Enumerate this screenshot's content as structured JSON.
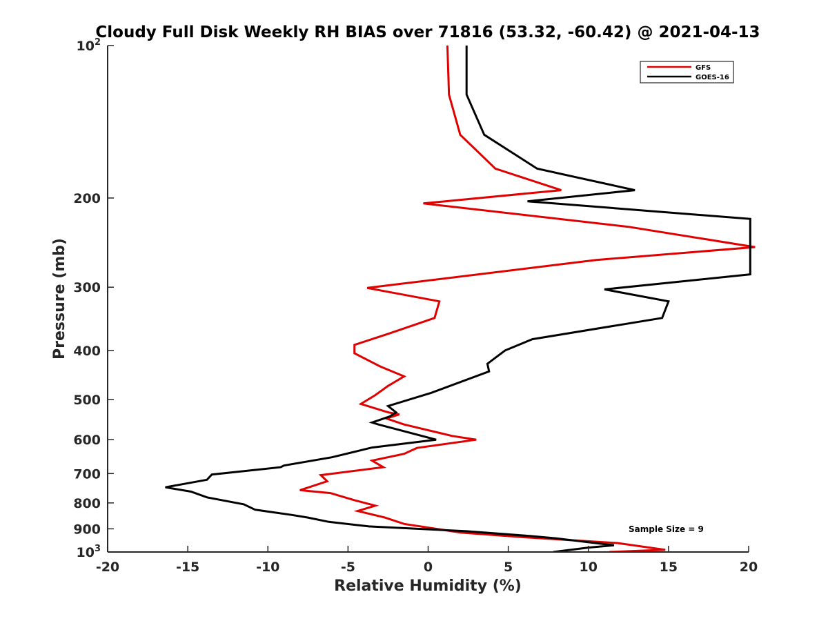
{
  "chart_data": {
    "type": "line",
    "title": "Cloudy Full Disk Weekly RH BIAS over 71816 (53.32, -60.42) @ 2021-04-13",
    "xlabel": "Relative Humidity (%)",
    "ylabel": "Pressure (mb)",
    "xlim": [
      -20,
      20
    ],
    "ylim": [
      100,
      1000
    ],
    "y_scale": "log",
    "y_reversed": true,
    "grid": false,
    "legend_position": "top-right",
    "x_ticks": [
      {
        "value": -20,
        "label": "-20"
      },
      {
        "value": -15,
        "label": "-15"
      },
      {
        "value": -10,
        "label": "-10"
      },
      {
        "value": -5,
        "label": "-5"
      },
      {
        "value": 0,
        "label": "0"
      },
      {
        "value": 5,
        "label": "5"
      },
      {
        "value": 10,
        "label": "10"
      },
      {
        "value": 15,
        "label": "15"
      },
      {
        "value": 20,
        "label": "20"
      }
    ],
    "y_ticks": [
      {
        "value": 100,
        "label": "10",
        "sup": "2"
      },
      {
        "value": 200,
        "label": "200"
      },
      {
        "value": 300,
        "label": "300"
      },
      {
        "value": 400,
        "label": "400"
      },
      {
        "value": 500,
        "label": "500"
      },
      {
        "value": 600,
        "label": "600"
      },
      {
        "value": 700,
        "label": "700"
      },
      {
        "value": 800,
        "label": "800"
      },
      {
        "value": 900,
        "label": "900"
      },
      {
        "value": 1000,
        "label": "10",
        "sup": "3"
      }
    ],
    "series": [
      {
        "name": "GFS",
        "color": "#e00000",
        "points": [
          [
            1.2,
            100
          ],
          [
            1.3,
            125
          ],
          [
            2.0,
            150
          ],
          [
            4.2,
            175
          ],
          [
            8.3,
            193
          ],
          [
            -0.3,
            205
          ],
          [
            12.5,
            228
          ],
          [
            20.4,
            250
          ],
          [
            10.5,
            265
          ],
          [
            -3.8,
            301
          ],
          [
            0.7,
            320
          ],
          [
            0.4,
            345
          ],
          [
            -2.4,
            370
          ],
          [
            -4.6,
            390
          ],
          [
            -4.6,
            405
          ],
          [
            -3.0,
            430
          ],
          [
            -1.5,
            450
          ],
          [
            -2.5,
            470
          ],
          [
            -3.3,
            490
          ],
          [
            -4.2,
            510
          ],
          [
            -2.5,
            530
          ],
          [
            -1.8,
            535
          ],
          [
            -2.6,
            545
          ],
          [
            -1.5,
            560
          ],
          [
            1.5,
            590
          ],
          [
            3.0,
            600
          ],
          [
            -0.7,
            623
          ],
          [
            -1.5,
            640
          ],
          [
            -3.5,
            660
          ],
          [
            -2.8,
            680
          ],
          [
            -6.7,
            705
          ],
          [
            -6.3,
            725
          ],
          [
            -8.0,
            755
          ],
          [
            -6.1,
            765
          ],
          [
            -4.6,
            790
          ],
          [
            -3.3,
            810
          ],
          [
            -4.4,
            830
          ],
          [
            -2.7,
            855
          ],
          [
            -1.5,
            880
          ],
          [
            2.0,
            915
          ],
          [
            6.0,
            935
          ],
          [
            11.8,
            960
          ],
          [
            14.8,
            990
          ],
          [
            11.3,
            1000
          ]
        ]
      },
      {
        "name": "GOES-16",
        "color": "#000000",
        "points": [
          [
            2.4,
            100
          ],
          [
            2.4,
            125
          ],
          [
            3.5,
            150
          ],
          [
            6.8,
            175
          ],
          [
            12.9,
            193
          ],
          [
            6.2,
            203
          ],
          [
            20.1,
            220
          ],
          [
            20.1,
            283
          ],
          [
            11.0,
            303
          ],
          [
            15.0,
            320
          ],
          [
            14.6,
            345
          ],
          [
            6.5,
            380
          ],
          [
            4.8,
            400
          ],
          [
            3.7,
            425
          ],
          [
            3.8,
            440
          ],
          [
            0.2,
            485
          ],
          [
            -2.5,
            515
          ],
          [
            -2.0,
            530
          ],
          [
            -2.4,
            540
          ],
          [
            -3.5,
            555
          ],
          [
            -3.1,
            560
          ],
          [
            0.5,
            600
          ],
          [
            -3.5,
            622
          ],
          [
            -6.0,
            650
          ],
          [
            -9.0,
            675
          ],
          [
            -9.2,
            680
          ],
          [
            -13.5,
            703
          ],
          [
            -13.8,
            720
          ],
          [
            -16.4,
            745
          ],
          [
            -14.8,
            760
          ],
          [
            -13.8,
            780
          ],
          [
            -11.5,
            805
          ],
          [
            -10.8,
            825
          ],
          [
            -8.5,
            845
          ],
          [
            -7.5,
            855
          ],
          [
            -6.2,
            872
          ],
          [
            -3.7,
            890
          ],
          [
            2.4,
            910
          ],
          [
            6.4,
            930
          ],
          [
            8.0,
            940
          ],
          [
            11.6,
            970
          ],
          [
            10.0,
            980
          ],
          [
            7.8,
            1000
          ]
        ]
      }
    ],
    "annotation": "Sample Size = 9"
  }
}
